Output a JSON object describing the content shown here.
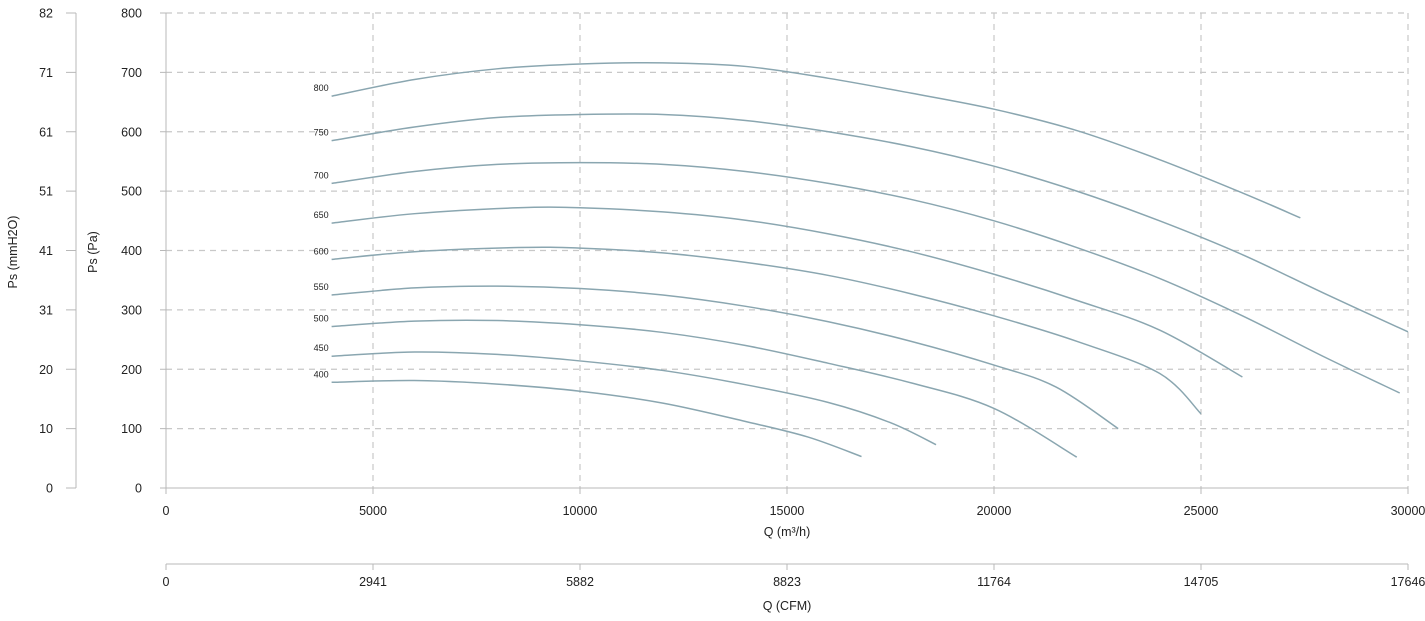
{
  "chart_data": {
    "type": "line",
    "title": "",
    "xlabel": "Q (m³/h)",
    "xlabel_secondary": "Q (CFM)",
    "ylabel": "Ps (Pa)",
    "ylabel_secondary": "Ps (mmH2O)",
    "xlim": [
      0,
      30000
    ],
    "ylim": [
      0,
      800
    ],
    "x_ticks": [
      "0",
      "5000",
      "10000",
      "15000",
      "20000",
      "25000",
      "30000"
    ],
    "x_ticks_secondary": [
      "0",
      "2941",
      "5882",
      "8823",
      "11764",
      "14705",
      "17646"
    ],
    "y_ticks": [
      "0",
      "100",
      "200",
      "300",
      "400",
      "500",
      "600",
      "700",
      "800"
    ],
    "y_ticks_secondary": [
      "0",
      "10",
      "20",
      "31",
      "41",
      "51",
      "61",
      "71",
      "82"
    ],
    "grid": true,
    "line_color": "#8aa6b0",
    "series": [
      {
        "name": "400",
        "points": [
          [
            4000,
            178
          ],
          [
            6000,
            181
          ],
          [
            8000,
            175
          ],
          [
            10000,
            163
          ],
          [
            12000,
            143
          ],
          [
            14000,
            112
          ],
          [
            15500,
            86
          ],
          [
            16800,
            53
          ]
        ]
      },
      {
        "name": "450",
        "points": [
          [
            4000,
            222
          ],
          [
            6000,
            229
          ],
          [
            8000,
            225
          ],
          [
            10000,
            214
          ],
          [
            12000,
            198
          ],
          [
            14000,
            174
          ],
          [
            16000,
            144
          ],
          [
            17500,
            110
          ],
          [
            18600,
            73
          ]
        ]
      },
      {
        "name": "500",
        "points": [
          [
            4000,
            272
          ],
          [
            6000,
            281
          ],
          [
            8000,
            282
          ],
          [
            10000,
            275
          ],
          [
            12000,
            262
          ],
          [
            14000,
            240
          ],
          [
            16000,
            210
          ],
          [
            18000,
            177
          ],
          [
            20000,
            134
          ],
          [
            22000,
            52
          ]
        ]
      },
      {
        "name": "550",
        "points": [
          [
            4000,
            325
          ],
          [
            6000,
            337
          ],
          [
            8000,
            340
          ],
          [
            10000,
            336
          ],
          [
            12000,
            325
          ],
          [
            14000,
            306
          ],
          [
            16000,
            280
          ],
          [
            18000,
            247
          ],
          [
            20000,
            207
          ],
          [
            21500,
            170
          ],
          [
            23000,
            100
          ]
        ]
      },
      {
        "name": "600",
        "points": [
          [
            4000,
            385
          ],
          [
            6000,
            398
          ],
          [
            8500,
            405
          ],
          [
            10000,
            404
          ],
          [
            12000,
            396
          ],
          [
            14000,
            380
          ],
          [
            16000,
            358
          ],
          [
            18000,
            327
          ],
          [
            20000,
            290
          ],
          [
            22000,
            247
          ],
          [
            24000,
            193
          ],
          [
            25000,
            125
          ]
        ]
      },
      {
        "name": "650",
        "points": [
          [
            4000,
            446
          ],
          [
            6000,
            462
          ],
          [
            8500,
            472
          ],
          [
            10000,
            472
          ],
          [
            12000,
            465
          ],
          [
            14000,
            451
          ],
          [
            16000,
            428
          ],
          [
            18000,
            398
          ],
          [
            20000,
            360
          ],
          [
            22000,
            316
          ],
          [
            24000,
            266
          ],
          [
            26000,
            187
          ]
        ]
      },
      {
        "name": "700",
        "points": [
          [
            4000,
            513
          ],
          [
            6000,
            533
          ],
          [
            8000,
            545
          ],
          [
            10000,
            548
          ],
          [
            12000,
            545
          ],
          [
            14000,
            533
          ],
          [
            16000,
            513
          ],
          [
            18000,
            486
          ],
          [
            20000,
            450
          ],
          [
            22000,
            405
          ],
          [
            24000,
            353
          ],
          [
            26000,
            290
          ],
          [
            28000,
            220
          ],
          [
            29800,
            160
          ]
        ]
      },
      {
        "name": "750",
        "points": [
          [
            4000,
            585
          ],
          [
            6000,
            608
          ],
          [
            8000,
            624
          ],
          [
            10000,
            629
          ],
          [
            12000,
            629
          ],
          [
            14000,
            619
          ],
          [
            16000,
            600
          ],
          [
            18000,
            575
          ],
          [
            20000,
            542
          ],
          [
            22000,
            500
          ],
          [
            24000,
            450
          ],
          [
            26000,
            393
          ],
          [
            28000,
            327
          ],
          [
            30000,
            263
          ]
        ]
      },
      {
        "name": "800",
        "points": [
          [
            4000,
            660
          ],
          [
            6000,
            688
          ],
          [
            8000,
            706
          ],
          [
            10000,
            714
          ],
          [
            12000,
            716
          ],
          [
            14000,
            710
          ],
          [
            16000,
            690
          ],
          [
            18000,
            665
          ],
          [
            20000,
            638
          ],
          [
            22000,
            602
          ],
          [
            24000,
            553
          ],
          [
            26000,
            497
          ],
          [
            27400,
            455
          ]
        ]
      }
    ]
  }
}
